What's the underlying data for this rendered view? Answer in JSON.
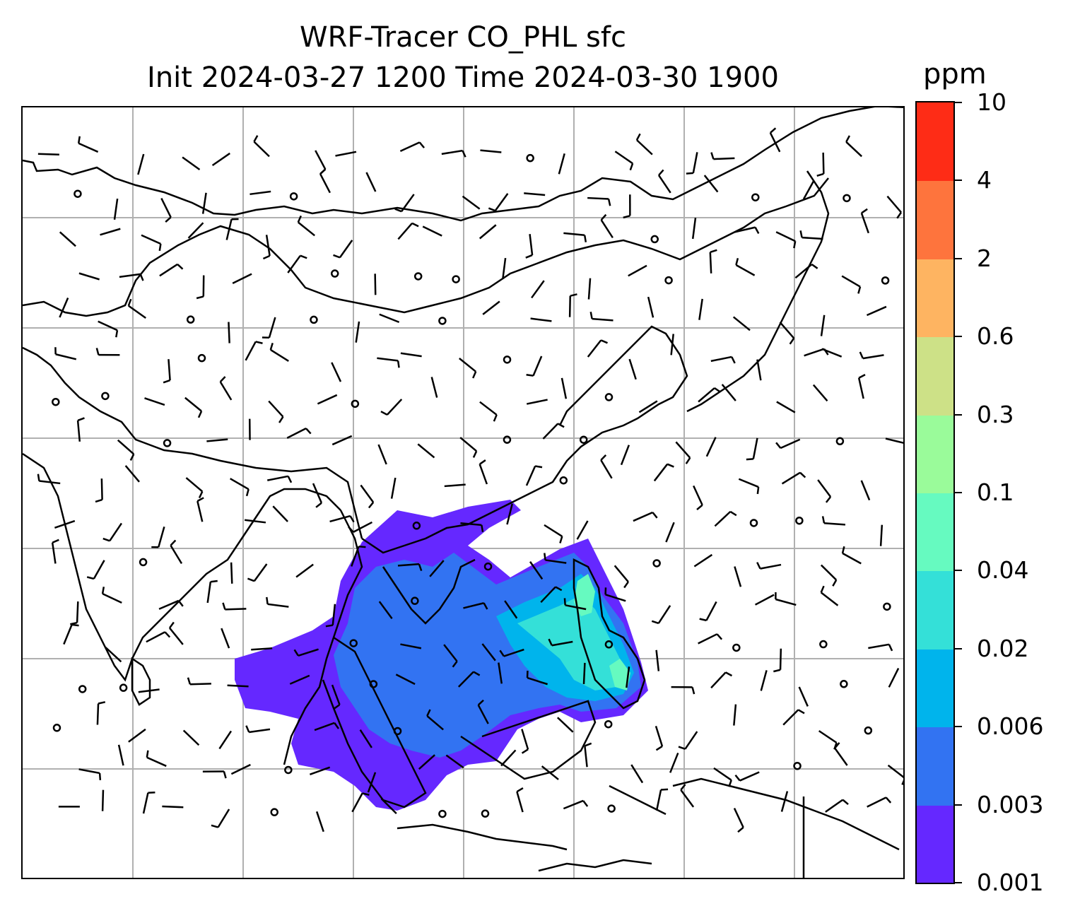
{
  "title": {
    "line1": "WRF-Tracer CO_PHL sfc",
    "line2": "Init 2024-03-27 1200 Time 2024-03-30 1900"
  },
  "colorbar": {
    "unit": "ppm",
    "levels": [
      "0.001",
      "0.003",
      "0.006",
      "0.02",
      "0.04",
      "0.1",
      "0.3",
      "0.6",
      "2",
      "4",
      "10"
    ],
    "colors": [
      "#6528ff",
      "#3273f2",
      "#00b4ec",
      "#34e0d8",
      "#66fac0",
      "#9afb9a",
      "#cde187",
      "#feb461",
      "#fe743d",
      "#fe2c16"
    ]
  },
  "map": {
    "gridlines": true,
    "gridline_color": "#b0b0b0",
    "coastline_color": "#000000",
    "plume_colors": [
      "#6528ff",
      "#3273f2",
      "#00b4ec",
      "#34e0d8",
      "#66fac0"
    ],
    "wind_symbols": "wind barbs and calm-circle markers"
  }
}
